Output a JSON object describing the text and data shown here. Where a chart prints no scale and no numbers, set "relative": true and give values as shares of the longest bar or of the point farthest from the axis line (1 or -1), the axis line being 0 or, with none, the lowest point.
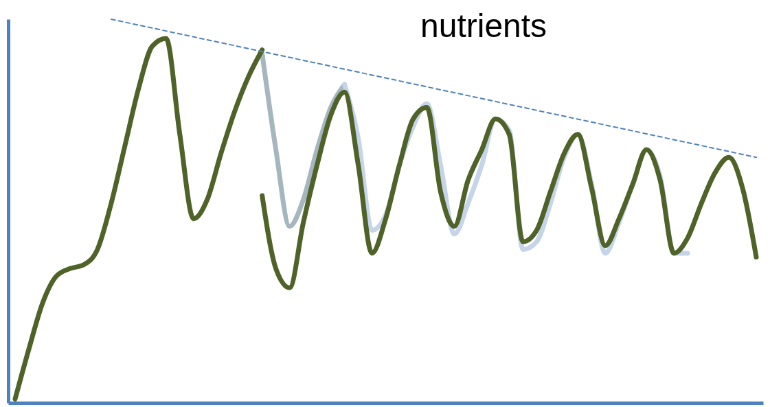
{
  "chart_data": {
    "type": "line",
    "relative": true,
    "grid": false,
    "marker": "none",
    "annotations": [
      "nutrients"
    ],
    "categories": [
      null,
      null,
      null,
      null,
      null,
      null,
      null,
      null,
      null,
      null,
      null,
      null,
      null,
      null,
      null,
      null,
      null,
      null,
      null,
      null,
      null,
      null,
      null,
      null,
      null,
      null,
      null,
      null,
      null,
      null,
      null,
      null,
      null,
      null,
      null,
      null,
      null,
      null,
      null,
      null,
      null,
      null,
      null,
      null,
      null,
      null,
      null,
      null,
      null,
      null,
      null,
      null,
      null,
      null,
      null
    ],
    "series": [
      {
        "color": "#a6b6bf",
        "values": [
          null,
          null,
          null,
          null,
          null,
          null,
          null,
          null,
          null,
          null,
          null,
          null,
          null,
          null,
          null,
          null,
          null,
          null,
          0.91,
          0.66,
          0.46,
          0.53,
          0.66,
          0.77,
          0.83,
          null,
          null,
          null,
          null,
          null,
          null,
          null,
          null,
          null,
          null,
          null,
          null,
          null,
          null,
          null,
          null,
          null,
          null,
          null,
          null,
          null,
          null,
          null,
          null,
          null,
          null,
          null,
          null,
          null,
          null
        ]
      },
      {
        "color": "#c6d4ea",
        "values": [
          null,
          null,
          null,
          null,
          null,
          null,
          null,
          null,
          null,
          null,
          null,
          null,
          null,
          null,
          null,
          null,
          null,
          null,
          null,
          null,
          null,
          null,
          null,
          null,
          0.83,
          0.69,
          0.45,
          0.49,
          0.62,
          0.72,
          0.78,
          0.62,
          0.44,
          0.52,
          0.62,
          0.74,
          0.71,
          0.4,
          0.42,
          0.52,
          0.64,
          0.7,
          0.57,
          0.39,
          0.47,
          0.57,
          0.66,
          0.59,
          0.39,
          0.39,
          null,
          null,
          null,
          null,
          null
        ]
      },
      {
        "color": "#4f6228",
        "values": [
          0.01,
          0.14,
          0.26,
          0.33,
          0.35,
          0.36,
          0.4,
          0.52,
          0.67,
          0.82,
          0.93,
          0.95,
          0.7,
          0.48,
          0.53,
          0.65,
          0.76,
          0.85,
          0.92,
          null,
          null,
          null,
          null,
          null,
          null,
          null,
          null,
          null,
          null,
          null,
          null,
          null,
          null,
          null,
          null,
          null,
          null,
          null,
          null,
          null,
          null,
          null,
          null,
          null,
          null,
          null,
          null,
          null,
          null,
          null,
          null,
          null,
          null,
          null,
          null
        ]
      },
      {
        "color": "#4f6228",
        "values": [
          null,
          null,
          null,
          null,
          null,
          null,
          null,
          null,
          null,
          null,
          null,
          null,
          null,
          null,
          null,
          null,
          null,
          null,
          0.54,
          0.35,
          0.3,
          0.47,
          0.62,
          0.75,
          0.81,
          0.62,
          0.39,
          0.48,
          0.62,
          0.74,
          0.77,
          0.55,
          0.46,
          0.58,
          0.66,
          0.74,
          0.7,
          0.42,
          0.45,
          0.55,
          0.65,
          0.7,
          0.56,
          0.41,
          0.48,
          0.57,
          0.66,
          0.58,
          0.39,
          0.43,
          0.52,
          0.6,
          0.64,
          0.56,
          0.38
        ]
      },
      {
        "color": "#4f81bd",
        "line_style": "dashed",
        "values": [
          null,
          null,
          null,
          null,
          null,
          null,
          null,
          1.0,
          null,
          null,
          null,
          null,
          null,
          null,
          null,
          null,
          null,
          null,
          null,
          null,
          null,
          null,
          null,
          null,
          null,
          null,
          null,
          null,
          null,
          null,
          null,
          null,
          null,
          null,
          null,
          null,
          null,
          null,
          null,
          null,
          null,
          null,
          null,
          null,
          null,
          null,
          null,
          null,
          null,
          null,
          null,
          null,
          null,
          null,
          0.64
        ]
      }
    ]
  }
}
